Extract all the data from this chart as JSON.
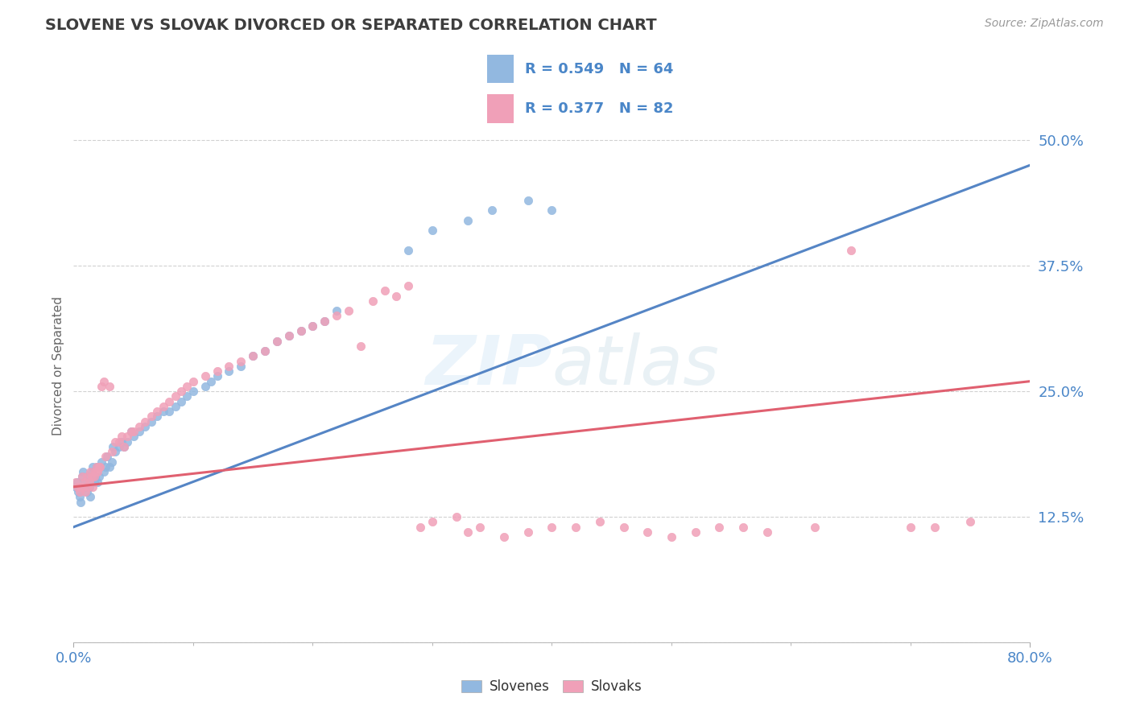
{
  "title": "SLOVENE VS SLOVAK DIVORCED OR SEPARATED CORRELATION CHART",
  "source": "Source: ZipAtlas.com",
  "ylabel": "Divorced or Separated",
  "xmin": 0.0,
  "xmax": 0.8,
  "ymin": 0.0,
  "ymax": 0.55,
  "yticks": [
    0.0,
    0.125,
    0.25,
    0.375,
    0.5
  ],
  "ytick_labels": [
    "",
    "12.5%",
    "25.0%",
    "37.5%",
    "50.0%"
  ],
  "slovene_color": "#92b8e0",
  "slovak_color": "#f0a0b8",
  "slovene_trend_color": "#5585c5",
  "slovak_trend_color": "#e06070",
  "slovene_R": 0.549,
  "slovene_N": 64,
  "slovak_R": 0.377,
  "slovak_N": 82,
  "background_color": "#ffffff",
  "grid_color": "#cccccc",
  "axis_label_color": "#4a86c8",
  "title_color": "#3d3d3d",
  "slovene_trend_x": [
    0.0,
    0.8
  ],
  "slovene_trend_y": [
    0.115,
    0.475
  ],
  "slovak_trend_x": [
    0.0,
    0.8
  ],
  "slovak_trend_y": [
    0.155,
    0.26
  ],
  "slovene_x": [
    0.002,
    0.003,
    0.004,
    0.005,
    0.006,
    0.007,
    0.008,
    0.009,
    0.01,
    0.011,
    0.012,
    0.013,
    0.014,
    0.015,
    0.016,
    0.017,
    0.018,
    0.019,
    0.02,
    0.021,
    0.022,
    0.023,
    0.025,
    0.027,
    0.028,
    0.03,
    0.032,
    0.033,
    0.035,
    0.038,
    0.04,
    0.042,
    0.045,
    0.048,
    0.05,
    0.055,
    0.06,
    0.065,
    0.07,
    0.075,
    0.08,
    0.085,
    0.09,
    0.095,
    0.1,
    0.11,
    0.115,
    0.12,
    0.13,
    0.14,
    0.15,
    0.16,
    0.17,
    0.18,
    0.19,
    0.2,
    0.21,
    0.22,
    0.28,
    0.3,
    0.33,
    0.35,
    0.38,
    0.4
  ],
  "slovene_y": [
    0.155,
    0.16,
    0.15,
    0.145,
    0.14,
    0.165,
    0.17,
    0.155,
    0.16,
    0.15,
    0.165,
    0.155,
    0.145,
    0.17,
    0.175,
    0.16,
    0.165,
    0.175,
    0.16,
    0.165,
    0.175,
    0.18,
    0.17,
    0.175,
    0.185,
    0.175,
    0.18,
    0.195,
    0.19,
    0.195,
    0.2,
    0.195,
    0.2,
    0.21,
    0.205,
    0.21,
    0.215,
    0.22,
    0.225,
    0.23,
    0.23,
    0.235,
    0.24,
    0.245,
    0.25,
    0.255,
    0.26,
    0.265,
    0.27,
    0.275,
    0.285,
    0.29,
    0.3,
    0.305,
    0.31,
    0.315,
    0.32,
    0.33,
    0.39,
    0.41,
    0.42,
    0.43,
    0.44,
    0.43
  ],
  "slovak_x": [
    0.002,
    0.003,
    0.005,
    0.006,
    0.007,
    0.008,
    0.009,
    0.01,
    0.011,
    0.012,
    0.013,
    0.014,
    0.015,
    0.016,
    0.017,
    0.018,
    0.019,
    0.02,
    0.021,
    0.022,
    0.023,
    0.025,
    0.027,
    0.03,
    0.032,
    0.035,
    0.038,
    0.04,
    0.042,
    0.045,
    0.048,
    0.05,
    0.055,
    0.06,
    0.065,
    0.07,
    0.075,
    0.08,
    0.085,
    0.09,
    0.095,
    0.1,
    0.11,
    0.12,
    0.13,
    0.14,
    0.15,
    0.16,
    0.17,
    0.18,
    0.19,
    0.2,
    0.21,
    0.22,
    0.23,
    0.24,
    0.25,
    0.26,
    0.27,
    0.28,
    0.29,
    0.3,
    0.32,
    0.33,
    0.34,
    0.36,
    0.38,
    0.4,
    0.42,
    0.44,
    0.46,
    0.48,
    0.5,
    0.52,
    0.54,
    0.56,
    0.58,
    0.62,
    0.65,
    0.7,
    0.72,
    0.75
  ],
  "slovak_y": [
    0.16,
    0.155,
    0.15,
    0.155,
    0.165,
    0.155,
    0.16,
    0.15,
    0.165,
    0.155,
    0.16,
    0.17,
    0.165,
    0.155,
    0.165,
    0.17,
    0.175,
    0.17,
    0.175,
    0.175,
    0.255,
    0.26,
    0.185,
    0.255,
    0.19,
    0.2,
    0.2,
    0.205,
    0.195,
    0.205,
    0.21,
    0.21,
    0.215,
    0.22,
    0.225,
    0.23,
    0.235,
    0.24,
    0.245,
    0.25,
    0.255,
    0.26,
    0.265,
    0.27,
    0.275,
    0.28,
    0.285,
    0.29,
    0.3,
    0.305,
    0.31,
    0.315,
    0.32,
    0.325,
    0.33,
    0.295,
    0.34,
    0.35,
    0.345,
    0.355,
    0.115,
    0.12,
    0.125,
    0.11,
    0.115,
    0.105,
    0.11,
    0.115,
    0.115,
    0.12,
    0.115,
    0.11,
    0.105,
    0.11,
    0.115,
    0.115,
    0.11,
    0.115,
    0.39,
    0.115,
    0.115,
    0.12
  ]
}
